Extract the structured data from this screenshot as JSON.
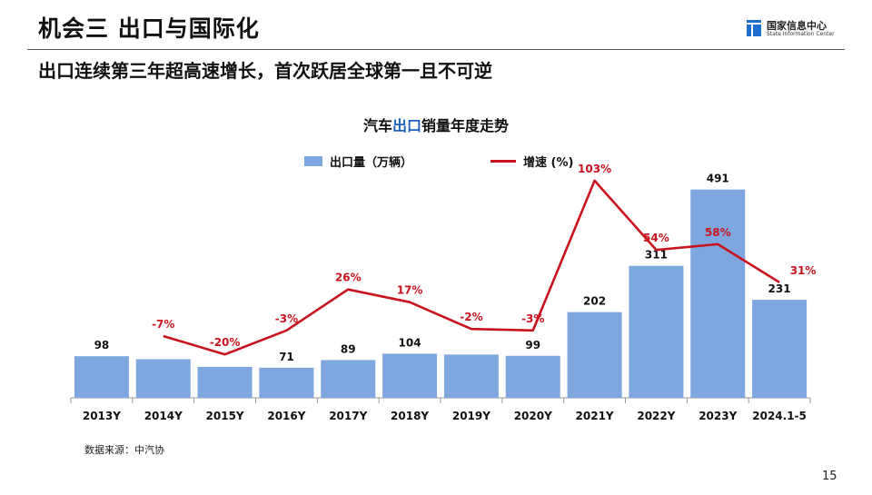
{
  "header": {
    "title": "机会三   出口与国际化",
    "subtitle": "出口连续第三年超高速增长，首次跃居全球第一且不可逆"
  },
  "logo": {
    "name_cn": "国家信息中心",
    "name_en": "State Information Center",
    "color": "#1f6fd1"
  },
  "chart_data": {
    "type": "bar",
    "title_prefix": "汽车",
    "title_highlight": "出口",
    "title_suffix": "销量年度走势",
    "categories": [
      "2013Y",
      "2014Y",
      "2015Y",
      "2016Y",
      "2017Y",
      "2018Y",
      "2019Y",
      "2020Y",
      "2021Y",
      "2022Y",
      "2023Y",
      "2024.1-5"
    ],
    "series": [
      {
        "name": "出口量（万辆）",
        "type": "bar",
        "color": "#7ea6df",
        "values": [
          98,
          91,
          73,
          71,
          89,
          104,
          102,
          99,
          202,
          311,
          491,
          231
        ],
        "labels": [
          "98",
          "",
          "",
          "71",
          "89",
          "104",
          "",
          "99",
          "202",
          "311",
          "491",
          "231"
        ]
      },
      {
        "name": "增速 (%)",
        "type": "line",
        "color": "#c8141e",
        "values": [
          null,
          -7,
          -20,
          -3,
          26,
          17,
          -2,
          -3,
          103,
          54,
          58,
          31
        ],
        "labels": [
          "",
          "-7%",
          "-20%",
          "-3%",
          "26%",
          "17%",
          "-2%",
          "-3%",
          "103%",
          "54%",
          "58%",
          "31%"
        ]
      }
    ],
    "bar_ylim": [
      0,
      700
    ],
    "line_ylim": [
      -52,
      110
    ],
    "grid": false,
    "legend": "top"
  },
  "footer": {
    "source": "数据来源：中汽协",
    "page_number": "15"
  }
}
